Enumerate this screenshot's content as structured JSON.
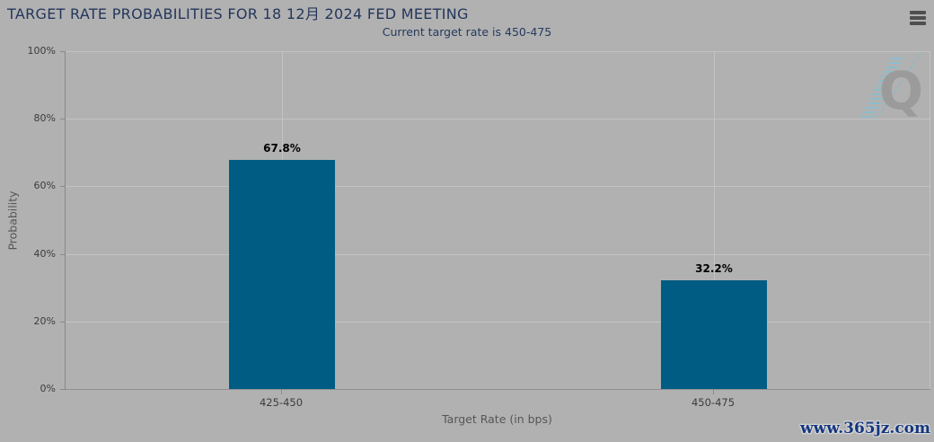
{
  "page": {
    "title": "TARGET RATE PROBABILITIES FOR 18 12月 2024 FED MEETING",
    "subtitle": "Current target rate is 450-475"
  },
  "menu": {
    "icon": "hamburger-menu-icon"
  },
  "chart_data": {
    "type": "bar",
    "title": "TARGET RATE PROBABILITIES FOR 18 12月 2024 FED MEETING",
    "subtitle": "Current target rate is 450-475",
    "categories": [
      "425-450",
      "450-475"
    ],
    "values": [
      67.8,
      32.2
    ],
    "data_labels": [
      "67.8%",
      "32.2%"
    ],
    "xlabel": "Target Rate (in bps)",
    "ylabel": "Probability",
    "ylim": [
      0,
      100
    ],
    "yticks": [
      0,
      20,
      40,
      60,
      80,
      100
    ],
    "ytick_labels": [
      "0%",
      "20%",
      "40%",
      "60%",
      "80%",
      "100%"
    ],
    "grid": true,
    "legend_position": "none",
    "bar_color": "#005c82"
  },
  "watermarks": {
    "logo_letter": "Q",
    "site": "www.365jz.com"
  },
  "colors": {
    "background": "#b1b1b1",
    "title": "#24365c",
    "bar": "#005c82",
    "gridline": "#c3c3c3",
    "axis_line": "#8a8a8a",
    "tick_label": "#3c3c3c",
    "axis_title": "#565656",
    "data_label": "#000000"
  }
}
